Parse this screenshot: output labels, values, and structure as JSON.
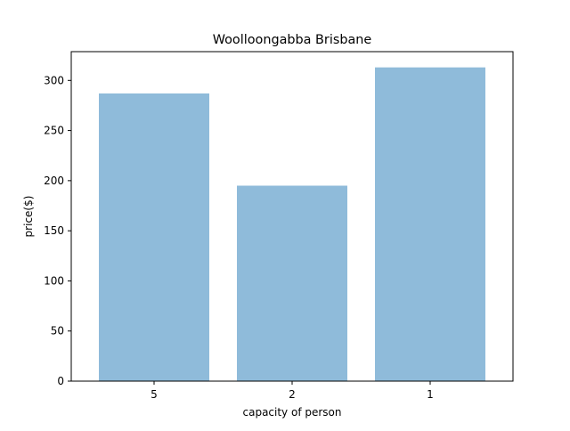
{
  "chart_data": {
    "type": "bar",
    "title": "Woolloongabba Brisbane",
    "xlabel": "capacity of person",
    "ylabel": "price($)",
    "categories": [
      "5",
      "2",
      "1"
    ],
    "values": [
      287,
      195,
      313
    ],
    "ylim": [
      0,
      328.7
    ],
    "yticks": [
      0,
      50,
      100,
      150,
      200,
      250,
      300
    ],
    "grid": false,
    "legend": "none",
    "bar_color": "#8fbbda"
  }
}
